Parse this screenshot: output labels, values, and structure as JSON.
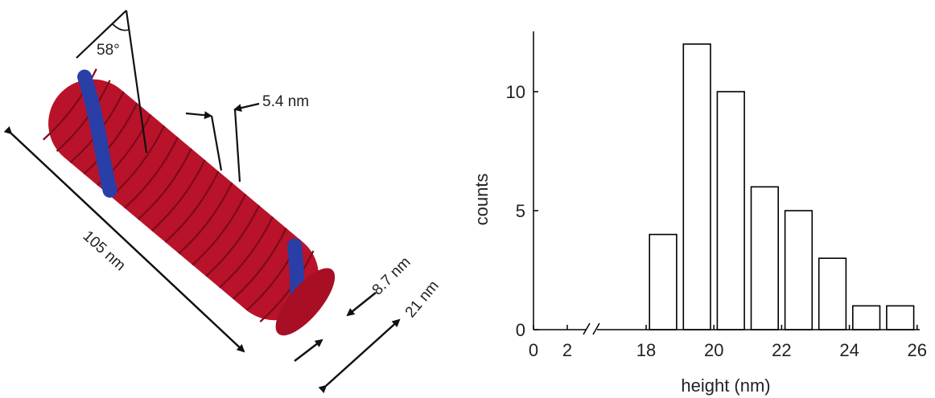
{
  "model_panel": {
    "angle_label": "58°",
    "pitch_label": "5.4 nm",
    "length_label": "105 nm",
    "strand_label": "8.7 nm",
    "diameter_label": "21 nm",
    "colors": {
      "strand_red": "#c8152c",
      "strand_blue": "#2a3ea8"
    }
  },
  "chart_data": {
    "type": "bar",
    "xlabel": "height (nm)",
    "ylabel": "counts",
    "x_ticks": [
      "0",
      "2",
      "18",
      "20",
      "22",
      "24",
      "26"
    ],
    "y_ticks": [
      "0",
      "5",
      "10"
    ],
    "xlim": [
      18,
      26
    ],
    "ylim": [
      0,
      12.4
    ],
    "axis_break": true,
    "bar_width": 0.8,
    "bars": [
      {
        "x": 18.5,
        "value": 4
      },
      {
        "x": 19.5,
        "value": 12
      },
      {
        "x": 20.5,
        "value": 10
      },
      {
        "x": 21.5,
        "value": 6
      },
      {
        "x": 22.5,
        "value": 5
      },
      {
        "x": 23.5,
        "value": 3
      },
      {
        "x": 24.5,
        "value": 1
      },
      {
        "x": 25.5,
        "value": 1
      }
    ],
    "grid": false,
    "colors": {
      "bar_fill": "#ffffff",
      "bar_stroke": "#000000"
    }
  }
}
